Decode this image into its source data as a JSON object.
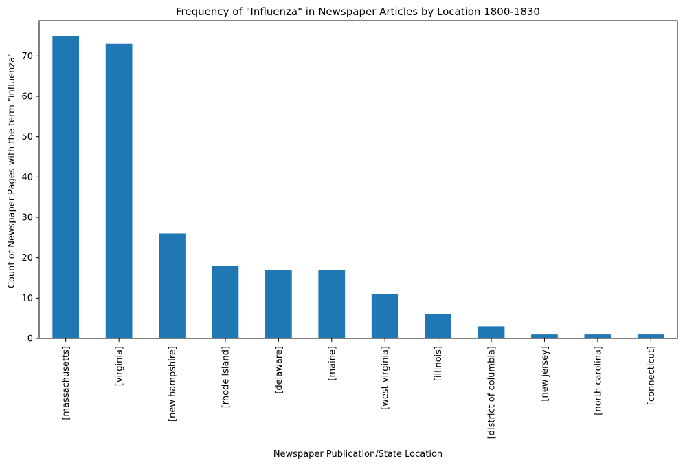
{
  "chart_data": {
    "type": "bar",
    "title": "Frequency of \"Influenza\" in Newspaper Articles by Location 1800-1830",
    "xlabel": "Newspaper Publication/State Location",
    "ylabel": "Count of Newspaper Pages with the term \"influenza\"",
    "categories": [
      "[massachusetts]",
      "[virginia]",
      "[new hampshire]",
      "[rhode island]",
      "[delaware]",
      "[maine]",
      "[west virginia]",
      "[illinois]",
      "[district of columbia]",
      "[new jersey]",
      "[north carolina]",
      "[connecticut]"
    ],
    "values": [
      75,
      73,
      26,
      18,
      17,
      17,
      11,
      6,
      3,
      1,
      1,
      1
    ],
    "yticks": [
      0,
      10,
      20,
      30,
      40,
      50,
      60,
      70
    ],
    "ylim": [
      0,
      78.75
    ],
    "grid": false,
    "legend": "none",
    "bar_color": "#1f77b4"
  }
}
